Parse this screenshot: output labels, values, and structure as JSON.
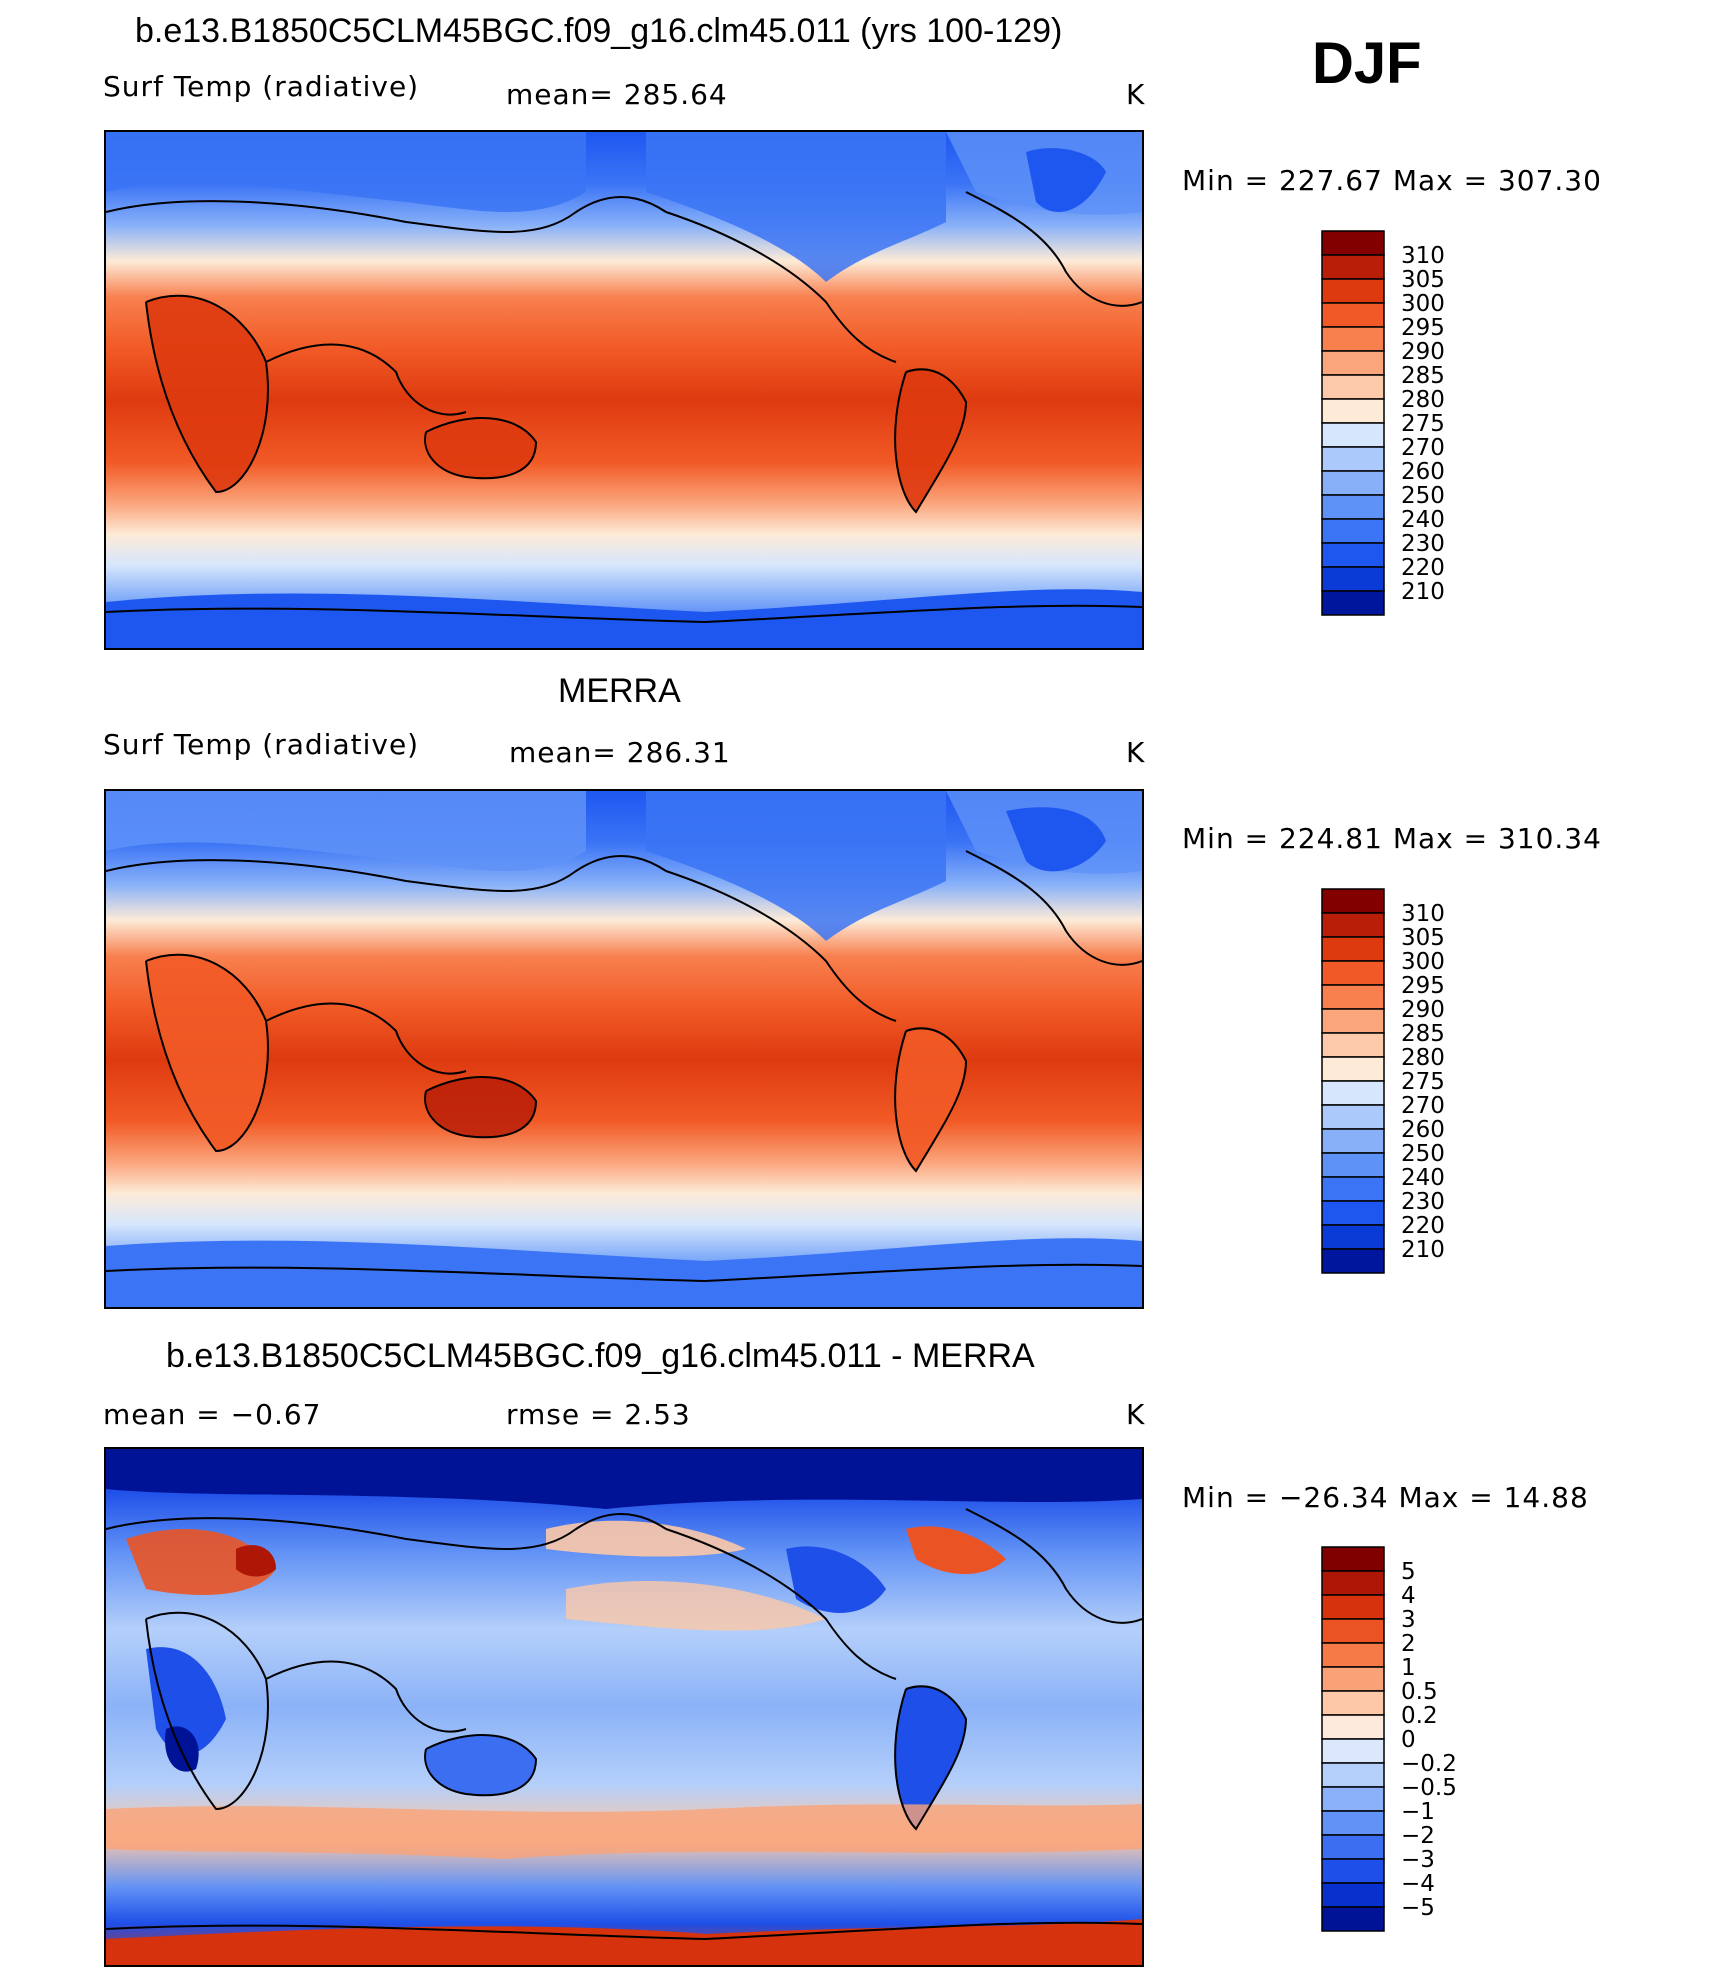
{
  "season": "DJF",
  "colors": {
    "abs_scale": [
      "#00006b",
      "#00169c",
      "#0b3bd6",
      "#1e57f0",
      "#3b74f5",
      "#5f92f7",
      "#87b0f9",
      "#abc9fb",
      "#d6e6fc",
      "#fdebd8",
      "#fcc9aa",
      "#fba57c",
      "#f8804f",
      "#f15a26",
      "#de3a10",
      "#b81e08",
      "#820000"
    ],
    "diff_scale": [
      "#00005e",
      "#001296",
      "#0830cc",
      "#1e4fe8",
      "#3c6ef2",
      "#6192f5",
      "#8bb2f8",
      "#b4cffa",
      "#dbe8fc",
      "#fdeadc",
      "#fcc8a8",
      "#faa277",
      "#f57a48",
      "#ea5424",
      "#d5320d",
      "#ae1605",
      "#800000"
    ]
  },
  "panels": [
    {
      "id": "model",
      "title": "b.e13.B1850C5CLM45BGC.f09_g16.clm45.011 (yrs 100-129)",
      "left_label": "Surf Temp (radiative)",
      "center_label": "mean=  285.64",
      "units": "K",
      "minmax": "Min  =  227.67  Max  =  307.30",
      "colorbar_labels": [
        "310",
        "305",
        "300",
        "295",
        "290",
        "285",
        "280",
        "275",
        "270",
        "260",
        "250",
        "240",
        "230",
        "220",
        "210"
      ]
    },
    {
      "id": "obs",
      "title": "MERRA",
      "left_label": "Surf Temp (radiative)",
      "center_label": "mean=  286.31",
      "units": "K",
      "minmax": "Min  =  224.81  Max  =  310.34",
      "colorbar_labels": [
        "310",
        "305",
        "300",
        "295",
        "290",
        "285",
        "280",
        "275",
        "270",
        "260",
        "250",
        "240",
        "230",
        "220",
        "210"
      ]
    },
    {
      "id": "diff",
      "title": "b.e13.B1850C5CLM45BGC.f09_g16.clm45.011 - MERRA",
      "left_label": "mean =    −0.67",
      "center_label": "rmse =     2.53",
      "units": "K",
      "minmax": "Min  =  −26.34  Max  =    14.88",
      "colorbar_labels": [
        "5",
        "4",
        "3",
        "2",
        "1",
        "0.5",
        "0.2",
        "0",
        "−0.2",
        "−0.5",
        "−1",
        "−2",
        "−3",
        "−4",
        "−5"
      ]
    }
  ]
}
